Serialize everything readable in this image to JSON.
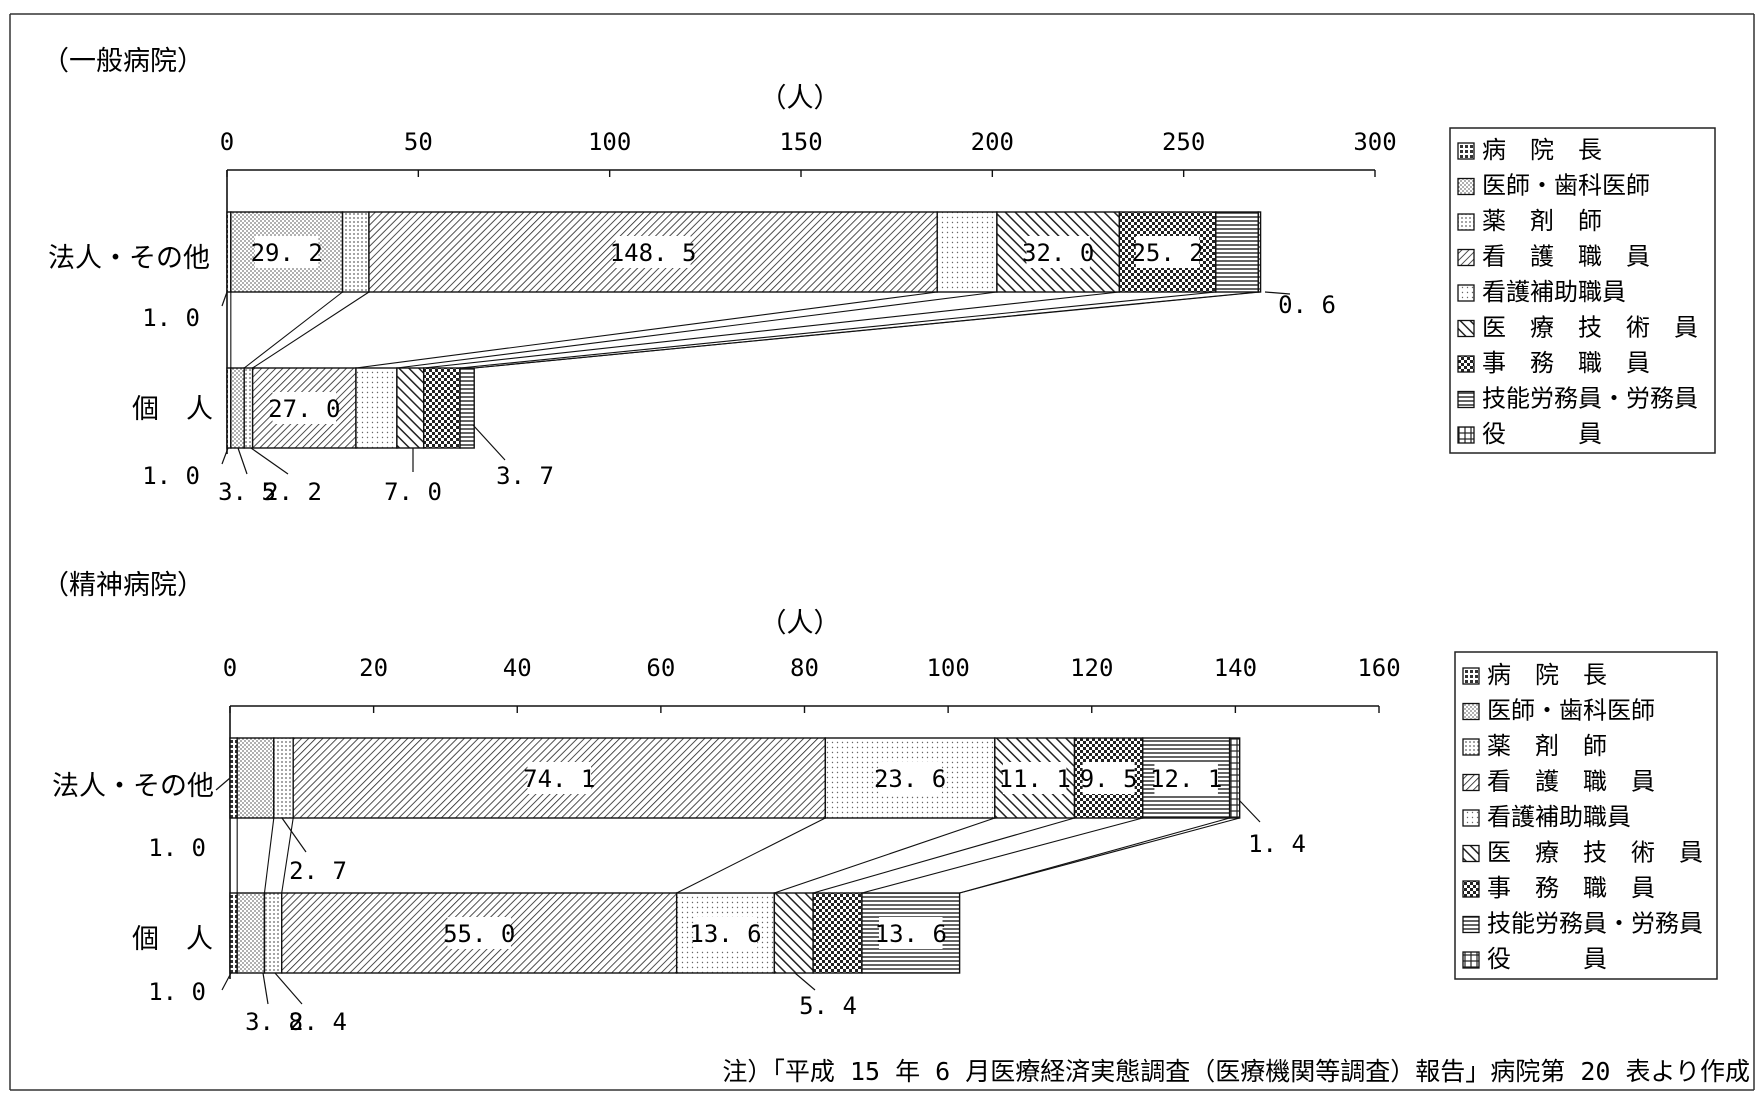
{
  "chart_data": [
    {
      "type": "bar",
      "stacked": true,
      "orientation": "horizontal",
      "section_title": "（一般病院）",
      "unit": "（人）",
      "xlim": [
        0,
        300
      ],
      "ticks": [
        0,
        50,
        100,
        150,
        200,
        250,
        300
      ],
      "tick_labels": [
        "0",
        "50",
        "100",
        "150",
        "200",
        "250",
        "300"
      ],
      "categories": [
        "法人・その他",
        "個　人"
      ],
      "series": [
        {
          "name": "病　院　長",
          "values": [
            1.0,
            1.0
          ]
        },
        {
          "name": "医師・歯科医師",
          "values": [
            29.2,
            3.5
          ]
        },
        {
          "name": "薬　剤　師",
          "values": [
            6.9,
            2.2
          ]
        },
        {
          "name": "看　護　職　員",
          "values": [
            148.5,
            27.0
          ]
        },
        {
          "name": "看護補助職員",
          "values": [
            15.6,
            10.7
          ]
        },
        {
          "name": "医　療　技　術　員",
          "values": [
            32.0,
            7.0
          ]
        },
        {
          "name": "事　務　職　員",
          "values": [
            25.2,
            9.5
          ]
        },
        {
          "name": "技能労務員・労務員",
          "values": [
            11.1,
            3.7
          ]
        },
        {
          "name": "役　　　員",
          "values": [
            0.6,
            0.0
          ]
        }
      ],
      "value_labels": [
        [
          "1.0",
          "29.2",
          "6.9",
          "148.5",
          "15.6",
          "32.0",
          "25.2",
          "11.1",
          "0.6"
        ],
        [
          "1.0",
          "3.5",
          "2.2",
          "27.0",
          "10.7",
          "7.0",
          "9.5",
          "3.7",
          ""
        ]
      ]
    },
    {
      "type": "bar",
      "stacked": true,
      "orientation": "horizontal",
      "section_title": "（精神病院）",
      "unit": "（人）",
      "xlim": [
        0,
        160
      ],
      "ticks": [
        0,
        20,
        40,
        60,
        80,
        100,
        120,
        140,
        160
      ],
      "tick_labels": [
        "0",
        "20",
        "40",
        "60",
        "80",
        "100",
        "120",
        "140",
        "160"
      ],
      "categories": [
        "法人・その他",
        "個　人"
      ],
      "series": [
        {
          "name": "病　院　長",
          "values": [
            1.0,
            1.0
          ]
        },
        {
          "name": "医師・歯科医師",
          "values": [
            5.1,
            3.8
          ]
        },
        {
          "name": "薬　剤　師",
          "values": [
            2.7,
            2.4
          ]
        },
        {
          "name": "看　護　職　員",
          "values": [
            74.1,
            55.0
          ]
        },
        {
          "name": "看護補助職員",
          "values": [
            23.6,
            13.6
          ]
        },
        {
          "name": "医　療　技　術　員",
          "values": [
            11.1,
            5.4
          ]
        },
        {
          "name": "事　務　職　員",
          "values": [
            9.5,
            6.8
          ]
        },
        {
          "name": "技能労務員・労務員",
          "values": [
            12.1,
            13.6
          ]
        },
        {
          "name": "役　　　員",
          "values": [
            1.4,
            0.0
          ]
        }
      ],
      "value_labels": [
        [
          "1.0",
          "5.1",
          "2.7",
          "74.1",
          "23.6",
          "11.1",
          "9.5",
          "12.1",
          "1.4"
        ],
        [
          "1.0",
          "3.8",
          "2.4",
          "55.0",
          "13.6",
          "5.4",
          "6.8",
          "13.6",
          ""
        ]
      ]
    }
  ],
  "legend_labels": [
    "病　院　長",
    "医師・歯科医師",
    "薬　剤　師",
    "看　護　職　員",
    "看護補助職員",
    "医　療　技　術　員",
    "事　務　職　員",
    "技能労務員・労務員",
    "役　　　員"
  ],
  "legend_placement": "right",
  "note": "注）「平成 15 年 6 月医療経済実態調査（医療機関等調査）報告」病院第 20 表より作成",
  "styles": {
    "line_color": "#111111",
    "series_fills": [
      "#8a8a8a",
      "#b5b5b5",
      "#c9c9c9",
      "#444444",
      "#e8e8e8",
      "#555555",
      "#2a2a2a",
      "#777777",
      "#999999"
    ]
  }
}
